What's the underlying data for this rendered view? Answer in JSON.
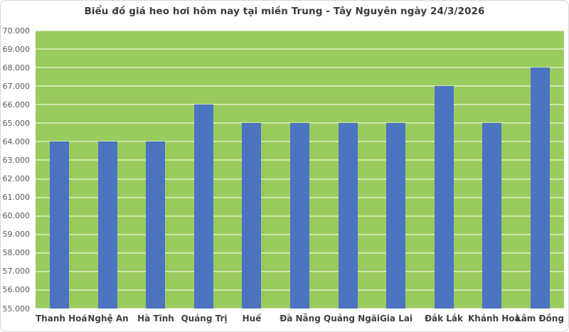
{
  "chart_title": "Biểu đồ giá heo hơi hôm nay tại miền Trung - Tây Nguyên ngày 24/3/2026",
  "colors": {
    "plot_background": "#9acb5e",
    "bar_fill": "#4c73c0",
    "gridline": "rgba(255,255,255,0.5)",
    "title_text": "#3b3b3b",
    "y_axis_text": "#595959",
    "x_axis_text": "#404040",
    "frame_border": "#d6d6d6"
  },
  "chart_data": {
    "type": "bar",
    "title": "Biểu đồ giá heo hơi hôm nay tại miền Trung - Tây Nguyên ngày 24/3/2026",
    "categories": [
      "Thanh Hoá",
      "Nghệ An",
      "Hà Tĩnh",
      "Quảng Trị",
      "Huế",
      "Đà Nẵng",
      "Quảng Ngãi",
      "Gia Lai",
      "Đắk Lắk",
      "Khánh Hoà",
      "Lâm Đồng"
    ],
    "values": [
      64000,
      64000,
      64000,
      66000,
      65000,
      65000,
      65000,
      65000,
      67000,
      65000,
      68000
    ],
    "xlabel": "",
    "ylabel": "",
    "ylim": [
      55000,
      70000
    ],
    "ytick_step": 1000,
    "ytick_labels": [
      "55.000",
      "56.000",
      "57.000",
      "58.000",
      "59.000",
      "60.000",
      "61.000",
      "62.000",
      "63.000",
      "64.000",
      "65.000",
      "66.000",
      "67.000",
      "68.000",
      "69.000",
      "70.000"
    ],
    "grid": true,
    "legend_position": "none"
  }
}
